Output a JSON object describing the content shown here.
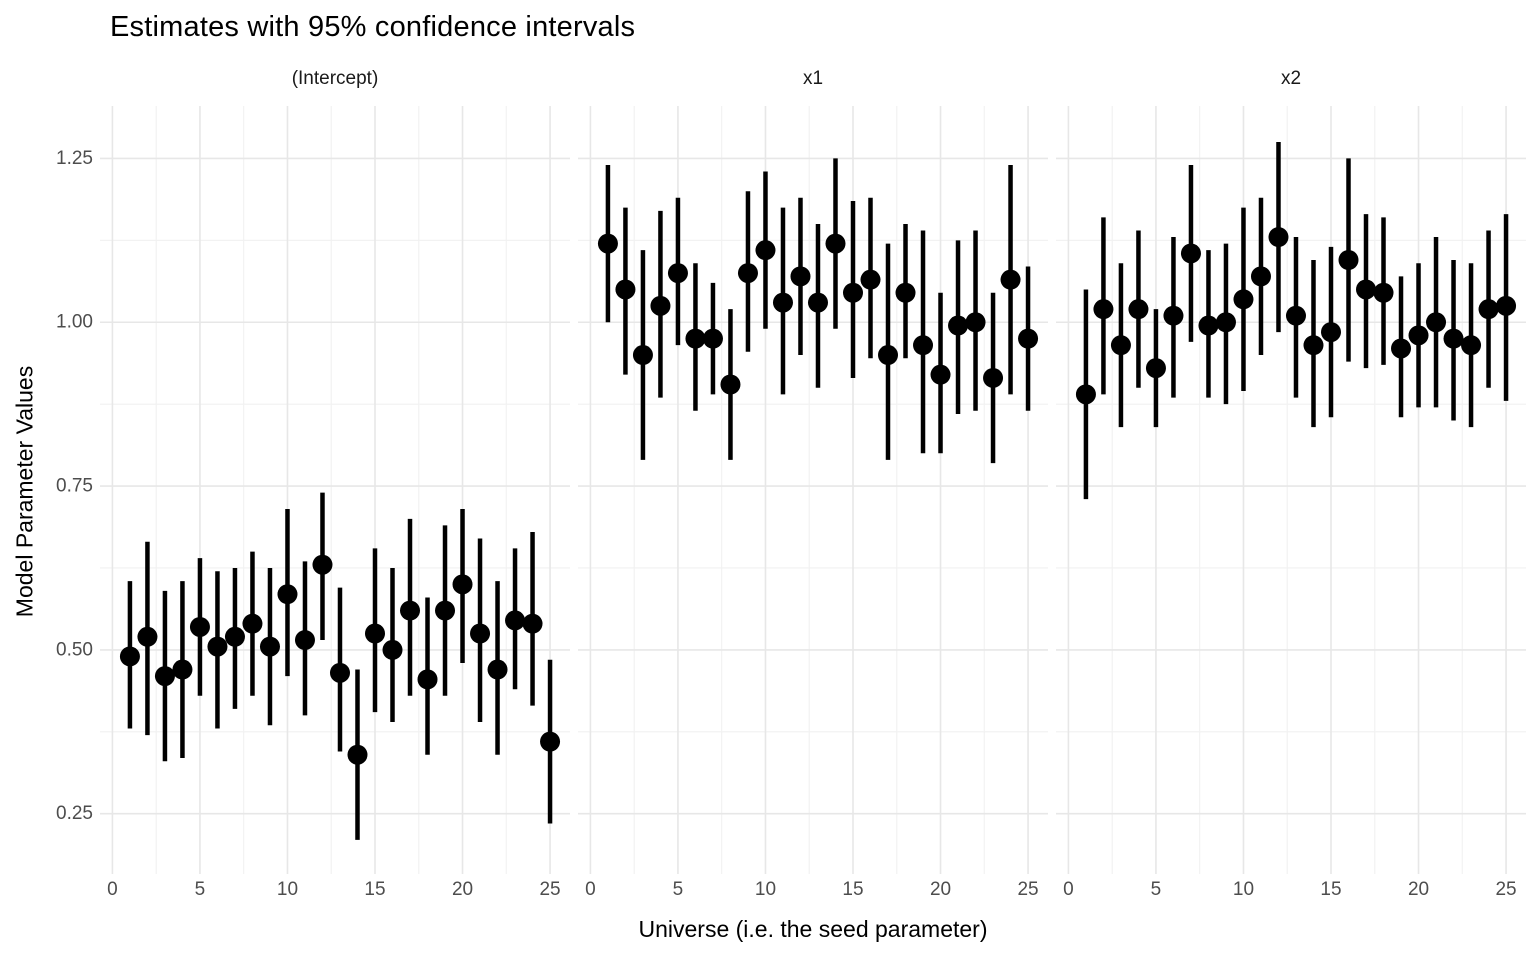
{
  "chart_data": {
    "type": "scatter",
    "subtype": "pointrange-facets",
    "title": "Estimates with 95% confidence intervals",
    "xlabel": "Universe (i.e. the seed parameter)",
    "ylabel": "Model Parameter Values",
    "error_bars": "95% confidence interval",
    "legend": "none",
    "grid": "major and minor, light gray on white",
    "xticks": [
      0,
      5,
      10,
      15,
      20,
      25
    ],
    "xtick_labels": [
      "0",
      "5",
      "10",
      "15",
      "20",
      "25"
    ],
    "xminor": [
      2.5,
      7.5,
      12.5,
      17.5,
      22.5
    ],
    "yticks": [
      0.25,
      0.5,
      0.75,
      1.0,
      1.25
    ],
    "ytick_labels": [
      "0.25",
      "0.50",
      "0.75",
      "1.00",
      "1.25"
    ],
    "yminor": [
      0.375,
      0.625,
      0.875,
      1.125
    ],
    "xlim": [
      -0.71,
      26.14
    ],
    "ylim": [
      0.158,
      1.33
    ],
    "point_color": "#000000",
    "line_color": "#000000",
    "facets": [
      {
        "label": "(Intercept)",
        "x": [
          1,
          2,
          3,
          4,
          5,
          6,
          7,
          8,
          9,
          10,
          11,
          12,
          13,
          14,
          15,
          16,
          17,
          18,
          19,
          20,
          21,
          22,
          23,
          24,
          25
        ],
        "estimate": [
          0.49,
          0.52,
          0.46,
          0.47,
          0.535,
          0.505,
          0.52,
          0.54,
          0.505,
          0.585,
          0.515,
          0.63,
          0.465,
          0.34,
          0.525,
          0.5,
          0.56,
          0.455,
          0.56,
          0.6,
          0.525,
          0.47,
          0.545,
          0.54,
          0.36
        ],
        "lower": [
          0.38,
          0.37,
          0.33,
          0.335,
          0.43,
          0.38,
          0.41,
          0.43,
          0.385,
          0.46,
          0.4,
          0.515,
          0.345,
          0.21,
          0.405,
          0.39,
          0.43,
          0.34,
          0.43,
          0.48,
          0.39,
          0.34,
          0.44,
          0.415,
          0.235
        ],
        "upper": [
          0.605,
          0.665,
          0.59,
          0.605,
          0.64,
          0.62,
          0.625,
          0.65,
          0.625,
          0.715,
          0.635,
          0.74,
          0.595,
          0.47,
          0.655,
          0.625,
          0.7,
          0.58,
          0.69,
          0.715,
          0.67,
          0.605,
          0.655,
          0.68,
          0.485
        ]
      },
      {
        "label": "x1",
        "x": [
          1,
          2,
          3,
          4,
          5,
          6,
          7,
          8,
          9,
          10,
          11,
          12,
          13,
          14,
          15,
          16,
          17,
          18,
          19,
          20,
          21,
          22,
          23,
          24,
          25
        ],
        "estimate": [
          1.12,
          1.05,
          0.95,
          1.025,
          1.075,
          0.975,
          0.975,
          0.905,
          1.075,
          1.11,
          1.03,
          1.07,
          1.03,
          1.12,
          1.045,
          1.065,
          0.95,
          1.045,
          0.965,
          0.92,
          0.995,
          1.0,
          0.915,
          1.065,
          0.975
        ],
        "lower": [
          1.0,
          0.92,
          0.79,
          0.885,
          0.965,
          0.865,
          0.89,
          0.79,
          0.955,
          0.99,
          0.89,
          0.95,
          0.9,
          0.99,
          0.915,
          0.945,
          0.79,
          0.945,
          0.8,
          0.8,
          0.86,
          0.865,
          0.785,
          0.89,
          0.865
        ],
        "upper": [
          1.24,
          1.175,
          1.11,
          1.17,
          1.19,
          1.09,
          1.06,
          1.02,
          1.2,
          1.23,
          1.175,
          1.19,
          1.15,
          1.25,
          1.185,
          1.19,
          1.12,
          1.15,
          1.14,
          1.045,
          1.125,
          1.14,
          1.045,
          1.24,
          1.085
        ]
      },
      {
        "label": "x2",
        "x": [
          1,
          2,
          3,
          4,
          5,
          6,
          7,
          8,
          9,
          10,
          11,
          12,
          13,
          14,
          15,
          16,
          17,
          18,
          19,
          20,
          21,
          22,
          23,
          24,
          25
        ],
        "estimate": [
          0.89,
          1.02,
          0.965,
          1.02,
          0.93,
          1.01,
          1.105,
          0.995,
          1.0,
          1.035,
          1.07,
          1.13,
          1.01,
          0.965,
          0.985,
          1.095,
          1.05,
          1.045,
          0.96,
          0.98,
          1.0,
          0.975,
          0.965,
          1.02,
          1.025
        ],
        "lower": [
          0.73,
          0.89,
          0.84,
          0.9,
          0.84,
          0.885,
          0.97,
          0.885,
          0.875,
          0.895,
          0.95,
          0.985,
          0.885,
          0.84,
          0.855,
          0.94,
          0.93,
          0.935,
          0.855,
          0.87,
          0.87,
          0.85,
          0.84,
          0.9,
          0.88
        ],
        "upper": [
          1.05,
          1.16,
          1.09,
          1.14,
          1.02,
          1.13,
          1.24,
          1.11,
          1.12,
          1.175,
          1.19,
          1.275,
          1.13,
          1.095,
          1.115,
          1.25,
          1.165,
          1.16,
          1.07,
          1.09,
          1.13,
          1.095,
          1.09,
          1.14,
          1.165
        ]
      }
    ],
    "colors": {
      "background": "#ffffff",
      "grid_major": "#e7e7e7",
      "grid_minor": "#f1f1f1",
      "tick_label": "#4d4d4d",
      "strip_label": "#1a1a1a",
      "data": "#000000"
    }
  }
}
